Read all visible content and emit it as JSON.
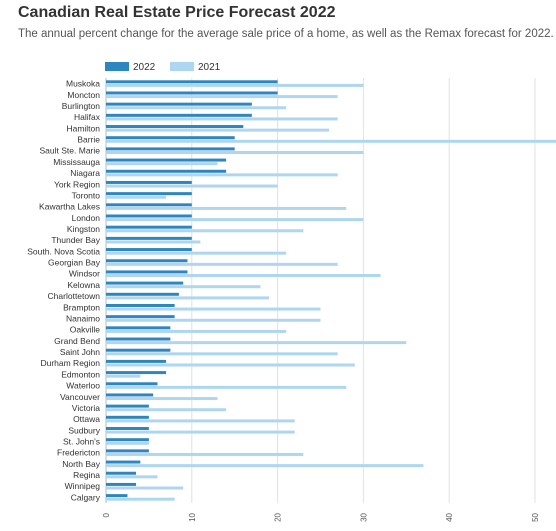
{
  "chart_data": {
    "type": "bar",
    "orientation": "horizontal",
    "title": "Canadian Real Estate Price Forecast 2022",
    "subtitle": "The annual percent change for the average sale price of a home, as well as the Remax forecast for 2022.",
    "xlabel": "",
    "ylabel": "",
    "xlim": [
      0,
      50
    ],
    "xticks": [
      0,
      10,
      20,
      30,
      40,
      50
    ],
    "grid": "vertical",
    "legend": "top-left",
    "colors": {
      "2022": "#2e86c1",
      "2021": "#aed6f1"
    },
    "categories": [
      "Muskoka",
      "Moncton",
      "Burlington",
      "Halifax",
      "Hamilton",
      "Barrie",
      "Sault Ste. Marie",
      "Mississauga",
      "Niagara",
      "York Region",
      "Toronto",
      "Kawartha Lakes",
      "London",
      "Kingston",
      "Thunder Bay",
      "South. Nova Scotia",
      "Georgian Bay",
      "Windsor",
      "Kelowna",
      "Charlottetown",
      "Brampton",
      "Nanaimo",
      "Oakville",
      "Grand Bend",
      "Saint John",
      "Durham Region",
      "Edmonton",
      "Waterloo",
      "Vancouver",
      "Victoria",
      "Ottawa",
      "Sudbury",
      "St. John's",
      "Fredericton",
      "North Bay",
      "Regina",
      "Winnipeg",
      "Calgary"
    ],
    "series": [
      {
        "name": "2022",
        "values": [
          20,
          20,
          17,
          17,
          16,
          15,
          15,
          14,
          14,
          10,
          10,
          10,
          10,
          10,
          10,
          10,
          9.5,
          9.5,
          9,
          8.5,
          8,
          8,
          7.5,
          7.5,
          7.5,
          7,
          7,
          6,
          5.5,
          5,
          5,
          5,
          5,
          5,
          4,
          3.5,
          3.5,
          2.5
        ]
      },
      {
        "name": "2021",
        "values": [
          30,
          27,
          21,
          27,
          26,
          53,
          30,
          13,
          27,
          20,
          7,
          28,
          30,
          23,
          11,
          21,
          27,
          32,
          18,
          19,
          25,
          25,
          21,
          35,
          27,
          29,
          4,
          28,
          13,
          14,
          22,
          22,
          5,
          23,
          37,
          6,
          9,
          8
        ]
      }
    ]
  }
}
